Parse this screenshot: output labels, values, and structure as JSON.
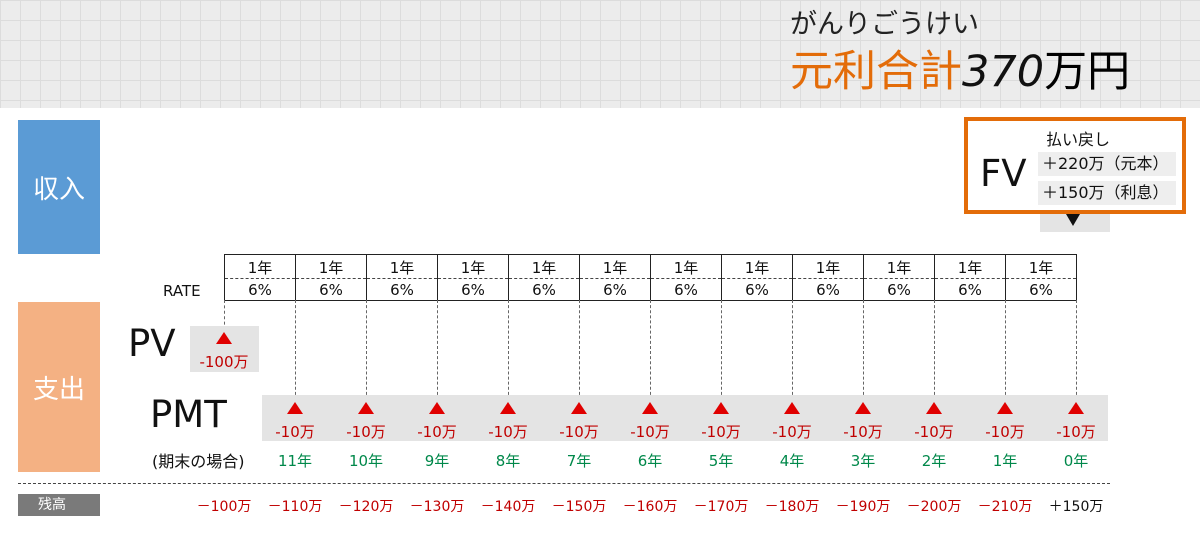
{
  "header": {
    "furigana": "がんりごうけい",
    "total_label": "元利合計",
    "total_amount": "370",
    "total_unit": "万円"
  },
  "sides": {
    "income": "収入",
    "expense": "支出"
  },
  "rate_label": "RATE",
  "periods": [
    {
      "year": "1年",
      "rate": "6%"
    },
    {
      "year": "1年",
      "rate": "6%"
    },
    {
      "year": "1年",
      "rate": "6%"
    },
    {
      "year": "1年",
      "rate": "6%"
    },
    {
      "year": "1年",
      "rate": "6%"
    },
    {
      "year": "1年",
      "rate": "6%"
    },
    {
      "year": "1年",
      "rate": "6%"
    },
    {
      "year": "1年",
      "rate": "6%"
    },
    {
      "year": "1年",
      "rate": "6%"
    },
    {
      "year": "1年",
      "rate": "6%"
    },
    {
      "year": "1年",
      "rate": "6%"
    },
    {
      "year": "1年",
      "rate": "6%"
    }
  ],
  "pv": {
    "label": "PV",
    "amount": "-100万"
  },
  "pmt": {
    "label": "PMT",
    "sub_label": "(期末の場合)",
    "amounts": [
      "-10万",
      "-10万",
      "-10万",
      "-10万",
      "-10万",
      "-10万",
      "-10万",
      "-10万",
      "-10万",
      "-10万",
      "-10万",
      "-10万"
    ],
    "years_remaining": [
      "11年",
      "10年",
      "9年",
      "8年",
      "7年",
      "6年",
      "5年",
      "4年",
      "3年",
      "2年",
      "1年",
      "0年"
    ]
  },
  "fv": {
    "label": "FV",
    "title": "払い戻し",
    "principal": "＋220万（元本）",
    "interest": "＋150万（利息）"
  },
  "balance": {
    "label": "残高",
    "values": [
      "－100万",
      "－110万",
      "－120万",
      "－130万",
      "－140万",
      "－150万",
      "－160万",
      "－170万",
      "－180万",
      "－190万",
      "－200万",
      "－210万",
      "＋150万"
    ]
  }
}
